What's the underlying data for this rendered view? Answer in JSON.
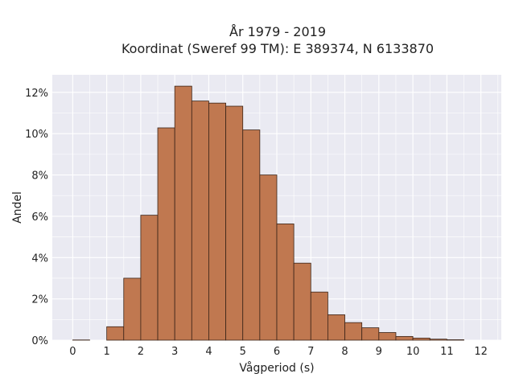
{
  "chart_data": {
    "type": "bar",
    "title_lines": [
      "År 1979 - 2019",
      "Koordinat (Sweref 99 TM): E 389374, N 6133870"
    ],
    "xlabel": "Vågperiod (s)",
    "ylabel": "Andel",
    "bin_width": 0.5,
    "bin_starts": [
      0,
      0.5,
      1,
      1.5,
      2,
      2.5,
      3,
      3.5,
      4,
      4.5,
      5,
      5.5,
      6,
      6.5,
      7,
      7.5,
      8,
      8.5,
      9,
      9.5,
      10,
      10.5,
      11,
      11.5
    ],
    "values": [
      0.0001,
      0,
      0.0065,
      0.03,
      0.0605,
      0.1028,
      0.123,
      0.1158,
      0.1148,
      0.1133,
      0.1018,
      0.08,
      0.0563,
      0.0373,
      0.0233,
      0.0123,
      0.0085,
      0.006,
      0.0037,
      0.0018,
      0.001,
      0.0005,
      0.0002,
      0.0
    ],
    "xlim": [
      -0.6,
      12.6
    ],
    "ylim": [
      0,
      0.1285
    ],
    "xticks": [
      0,
      1,
      2,
      3,
      4,
      5,
      6,
      7,
      8,
      9,
      10,
      11,
      12
    ],
    "xtick_labels": [
      "0",
      "1",
      "2",
      "3",
      "4",
      "5",
      "6",
      "7",
      "8",
      "9",
      "10",
      "11",
      "12"
    ],
    "yticks": [
      0,
      0.02,
      0.04,
      0.06,
      0.08,
      0.1,
      0.12
    ],
    "ytick_labels": [
      "0%",
      "2%",
      "4%",
      "6%",
      "8%",
      "10%",
      "12%"
    ],
    "grid": true,
    "colors": {
      "bar_fill": "#c07850",
      "bar_edge": "#3a2418",
      "plot_background": "#eaeaf2",
      "grid": "#ffffff"
    }
  }
}
